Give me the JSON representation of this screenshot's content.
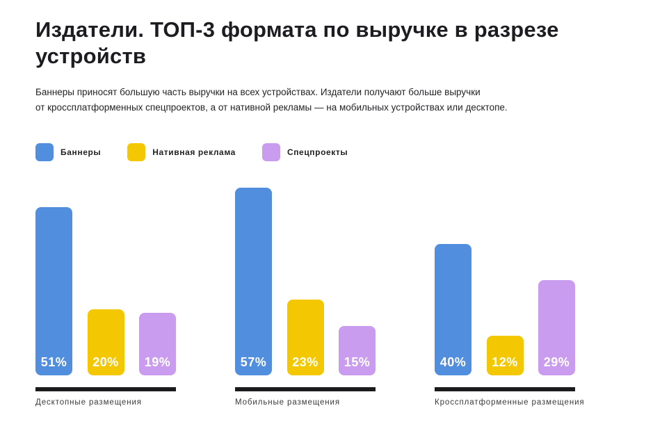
{
  "page": {
    "title_lines": [
      "Издатели. ТОП-3 формата по выручке в разрезе",
      "устройств"
    ],
    "subtitle_lines": [
      "Баннеры приносят большую часть выручки на всех устройствах. Издатели получают больше выручки",
      "от кроссплатформенных спецпроектов, а от нативной рекламы — на мобильных устройствах или десктопе."
    ]
  },
  "colors": {
    "banners": "#528EDE",
    "native_ads": "#F3C702",
    "special_projects": "#C99CEF",
    "title_text": "#1D1D21",
    "rule": "#1B1B1D",
    "background": "#FFFFFF"
  },
  "chart_data": {
    "type": "bar",
    "title": "Издатели. ТОП-3 формата по выручке в разрезе устройств",
    "subtitle": "Баннеры приносят большую часть выручки на всех устройствах. Издатели получают больше выручки от кроссплатформенных спецпроектов, а от нативной рекламы — на мобильных устройствах или десктопе.",
    "categories": [
      "Десктопные размещения",
      "Мобильные размещения",
      "Кроссплатформенные размещения"
    ],
    "series": [
      {
        "name": "Баннеры",
        "color": "#528EDE",
        "values": [
          51,
          57,
          40
        ]
      },
      {
        "name": "Нативная реклама",
        "color": "#F3C702",
        "values": [
          20,
          23,
          12
        ]
      },
      {
        "name": "Спецпроекты",
        "color": "#C99CEF",
        "values": [
          19,
          15,
          29
        ]
      }
    ],
    "value_suffix": "%",
    "value_labels_shown": true,
    "ylim": [
      0,
      57
    ],
    "grid": false,
    "legend_position": "top"
  }
}
